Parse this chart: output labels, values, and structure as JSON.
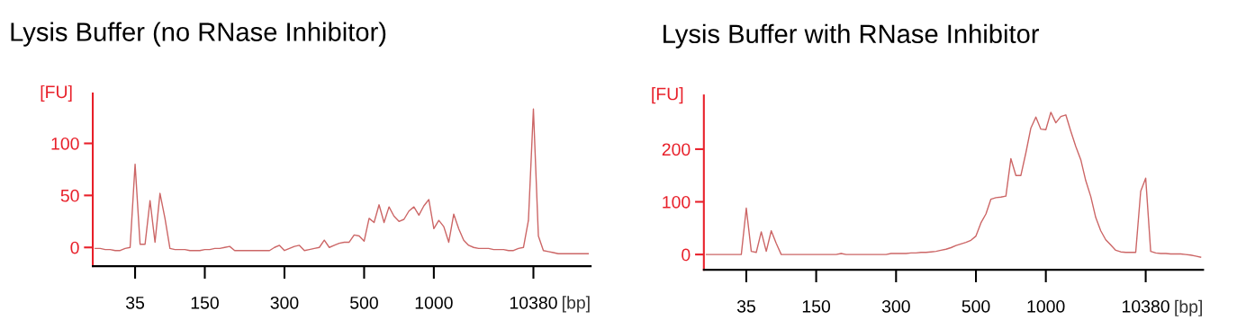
{
  "chart_data": [
    {
      "type": "line",
      "title": "Lysis Buffer (no RNase Inhibitor)",
      "ylabel": "[FU]",
      "xlabel": "[bp]",
      "ylim": [
        -18,
        148
      ],
      "yticks": [
        0,
        50,
        100
      ],
      "categories": [
        null,
        null,
        null,
        null,
        null,
        null,
        null,
        null,
        "35",
        null,
        null,
        null,
        null,
        null,
        null,
        null,
        null,
        null,
        null,
        null,
        null,
        null,
        "150",
        null,
        null,
        null,
        null,
        null,
        null,
        null,
        null,
        null,
        null,
        null,
        null,
        null,
        null,
        null,
        "300",
        null,
        null,
        null,
        null,
        null,
        null,
        null,
        null,
        null,
        null,
        null,
        null,
        null,
        null,
        null,
        "500",
        null,
        null,
        null,
        null,
        null,
        null,
        null,
        null,
        null,
        null,
        null,
        null,
        null,
        "1000",
        null,
        null,
        null,
        null,
        null,
        null,
        null,
        null,
        null,
        null,
        null,
        null,
        null,
        null,
        null,
        null,
        null,
        null,
        null,
        "10380",
        null,
        null,
        null,
        null,
        null,
        null,
        null,
        null,
        null,
        null,
        null
      ],
      "series": [
        {
          "color": "#cc6666",
          "values": [
            -1,
            -1,
            -2,
            -2,
            -3,
            -3,
            -1,
            0,
            80,
            3,
            3,
            45,
            5,
            52,
            28,
            -1,
            -2,
            -2,
            -2,
            -3,
            -3,
            -3,
            -2,
            -2,
            -1,
            -1,
            0,
            1,
            -3,
            -3,
            -3,
            -3,
            -3,
            -3,
            -3,
            -3,
            0,
            2,
            -3,
            -1,
            1,
            2,
            -3,
            -2,
            -1,
            0,
            7,
            0,
            2,
            4,
            5,
            5,
            12,
            11,
            6,
            28,
            24,
            41,
            24,
            39,
            30,
            25,
            27,
            35,
            39,
            31,
            40,
            46,
            18,
            26,
            20,
            5,
            32,
            18,
            7,
            2,
            0,
            -1,
            -1,
            -1,
            -2,
            -2,
            -2,
            -3,
            -3,
            -1,
            0,
            26,
            133,
            11,
            -3,
            -4,
            -5,
            -6,
            -6,
            -6,
            -6,
            -6,
            -6,
            -6
          ]
        }
      ]
    },
    {
      "type": "line",
      "title": "Lysis Buffer with RNase Inhibitor",
      "ylabel": "[FU]",
      "xlabel": "[bp]",
      "ylim": [
        -29,
        302
      ],
      "yticks": [
        0,
        100,
        200
      ],
      "categories": [
        null,
        null,
        null,
        null,
        null,
        null,
        null,
        null,
        "35",
        null,
        null,
        null,
        null,
        null,
        null,
        null,
        null,
        null,
        null,
        null,
        null,
        null,
        "150",
        null,
        null,
        null,
        null,
        null,
        null,
        null,
        null,
        null,
        null,
        null,
        null,
        null,
        null,
        null,
        "300",
        null,
        null,
        null,
        null,
        null,
        null,
        null,
        null,
        null,
        null,
        null,
        null,
        null,
        null,
        null,
        "500",
        null,
        null,
        null,
        null,
        null,
        null,
        null,
        null,
        null,
        null,
        null,
        null,
        null,
        "1000",
        null,
        null,
        null,
        null,
        null,
        null,
        null,
        null,
        null,
        null,
        null,
        null,
        null,
        null,
        null,
        null,
        null,
        null,
        null,
        "10380",
        null,
        null,
        null,
        null,
        null,
        null,
        null,
        null,
        null,
        null,
        null
      ],
      "series": [
        {
          "color": "#cc6666",
          "values": [
            0,
            0,
            0,
            0,
            0,
            0,
            0,
            0,
            88,
            6,
            4,
            43,
            6,
            45,
            21,
            0,
            0,
            0,
            0,
            0,
            0,
            0,
            0,
            0,
            0,
            0,
            0,
            2,
            0,
            0,
            0,
            0,
            0,
            0,
            0,
            0,
            0,
            2,
            2,
            2,
            2,
            3,
            3,
            4,
            4,
            5,
            6,
            8,
            10,
            13,
            17,
            20,
            23,
            27,
            35,
            60,
            77,
            105,
            108,
            109,
            111,
            182,
            150,
            150,
            193,
            240,
            261,
            238,
            237,
            270,
            250,
            262,
            265,
            234,
            205,
            180,
            140,
            110,
            70,
            45,
            28,
            18,
            8,
            5,
            4,
            4,
            4,
            120,
            145,
            6,
            3,
            2,
            2,
            1,
            1,
            1,
            0,
            -1,
            -3,
            -5
          ]
        }
      ]
    }
  ]
}
